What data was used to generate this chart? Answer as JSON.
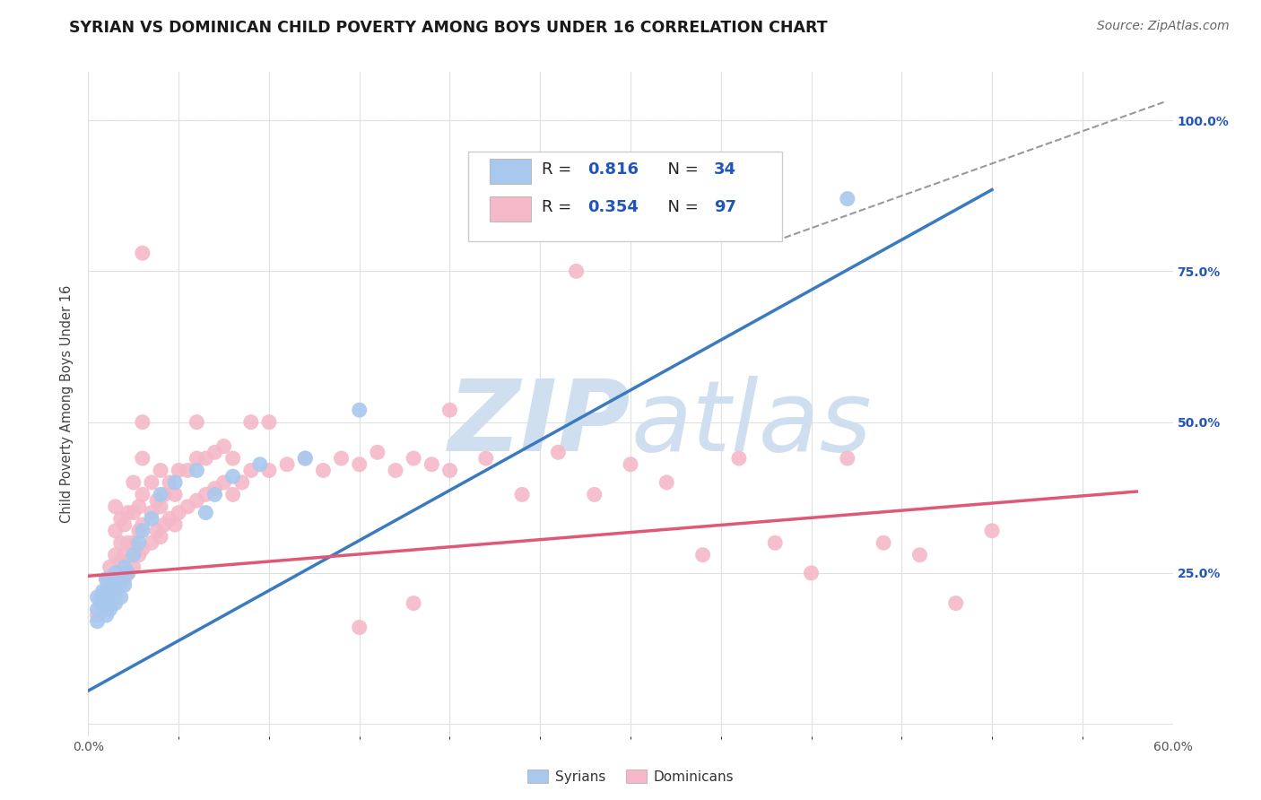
{
  "title": "SYRIAN VS DOMINICAN CHILD POVERTY AMONG BOYS UNDER 16 CORRELATION CHART",
  "source": "Source: ZipAtlas.com",
  "ylabel": "Child Poverty Among Boys Under 16",
  "xlim": [
    0.0,
    0.6
  ],
  "ylim": [
    -0.02,
    1.08
  ],
  "ytick_positions": [
    0.0,
    0.25,
    0.5,
    0.75,
    1.0
  ],
  "ytick_labels": [
    "",
    "25.0%",
    "50.0%",
    "75.0%",
    "100.0%"
  ],
  "syrian_color": "#a8c8ee",
  "dominican_color": "#f5b8c8",
  "syrian_line_color": "#3a7abf",
  "dominican_line_color": "#e05878",
  "legend_color": "#2255bb",
  "background_color": "#ffffff",
  "watermark_color": "#d0dff0",
  "grid_color": "#e0e0e0",
  "syrian_scatter": [
    [
      0.005,
      0.17
    ],
    [
      0.005,
      0.19
    ],
    [
      0.005,
      0.21
    ],
    [
      0.007,
      0.2
    ],
    [
      0.008,
      0.22
    ],
    [
      0.01,
      0.18
    ],
    [
      0.01,
      0.2
    ],
    [
      0.01,
      0.22
    ],
    [
      0.01,
      0.24
    ],
    [
      0.012,
      0.19
    ],
    [
      0.012,
      0.21
    ],
    [
      0.013,
      0.23
    ],
    [
      0.015,
      0.2
    ],
    [
      0.015,
      0.22
    ],
    [
      0.015,
      0.25
    ],
    [
      0.018,
      0.21
    ],
    [
      0.018,
      0.24
    ],
    [
      0.02,
      0.23
    ],
    [
      0.02,
      0.26
    ],
    [
      0.022,
      0.25
    ],
    [
      0.025,
      0.28
    ],
    [
      0.028,
      0.3
    ],
    [
      0.03,
      0.32
    ],
    [
      0.035,
      0.34
    ],
    [
      0.04,
      0.38
    ],
    [
      0.048,
      0.4
    ],
    [
      0.06,
      0.42
    ],
    [
      0.065,
      0.35
    ],
    [
      0.07,
      0.38
    ],
    [
      0.08,
      0.41
    ],
    [
      0.095,
      0.43
    ],
    [
      0.12,
      0.44
    ],
    [
      0.15,
      0.52
    ],
    [
      0.42,
      0.87
    ]
  ],
  "dominican_scatter": [
    [
      0.005,
      0.18
    ],
    [
      0.007,
      0.21
    ],
    [
      0.008,
      0.2
    ],
    [
      0.01,
      0.19
    ],
    [
      0.01,
      0.22
    ],
    [
      0.01,
      0.24
    ],
    [
      0.012,
      0.2
    ],
    [
      0.012,
      0.23
    ],
    [
      0.012,
      0.26
    ],
    [
      0.013,
      0.22
    ],
    [
      0.015,
      0.21
    ],
    [
      0.015,
      0.24
    ],
    [
      0.015,
      0.28
    ],
    [
      0.015,
      0.32
    ],
    [
      0.015,
      0.36
    ],
    [
      0.018,
      0.23
    ],
    [
      0.018,
      0.27
    ],
    [
      0.018,
      0.3
    ],
    [
      0.018,
      0.34
    ],
    [
      0.02,
      0.24
    ],
    [
      0.02,
      0.28
    ],
    [
      0.02,
      0.33
    ],
    [
      0.022,
      0.25
    ],
    [
      0.022,
      0.3
    ],
    [
      0.022,
      0.35
    ],
    [
      0.025,
      0.26
    ],
    [
      0.025,
      0.3
    ],
    [
      0.025,
      0.35
    ],
    [
      0.025,
      0.4
    ],
    [
      0.028,
      0.28
    ],
    [
      0.028,
      0.32
    ],
    [
      0.028,
      0.36
    ],
    [
      0.03,
      0.29
    ],
    [
      0.03,
      0.33
    ],
    [
      0.03,
      0.38
    ],
    [
      0.03,
      0.44
    ],
    [
      0.03,
      0.5
    ],
    [
      0.03,
      0.78
    ],
    [
      0.035,
      0.3
    ],
    [
      0.035,
      0.35
    ],
    [
      0.035,
      0.4
    ],
    [
      0.038,
      0.32
    ],
    [
      0.038,
      0.37
    ],
    [
      0.04,
      0.31
    ],
    [
      0.04,
      0.36
    ],
    [
      0.04,
      0.42
    ],
    [
      0.042,
      0.33
    ],
    [
      0.042,
      0.38
    ],
    [
      0.045,
      0.34
    ],
    [
      0.045,
      0.4
    ],
    [
      0.048,
      0.33
    ],
    [
      0.048,
      0.38
    ],
    [
      0.05,
      0.35
    ],
    [
      0.05,
      0.42
    ],
    [
      0.055,
      0.36
    ],
    [
      0.055,
      0.42
    ],
    [
      0.06,
      0.37
    ],
    [
      0.06,
      0.44
    ],
    [
      0.06,
      0.5
    ],
    [
      0.065,
      0.38
    ],
    [
      0.065,
      0.44
    ],
    [
      0.07,
      0.39
    ],
    [
      0.07,
      0.45
    ],
    [
      0.075,
      0.4
    ],
    [
      0.075,
      0.46
    ],
    [
      0.08,
      0.38
    ],
    [
      0.08,
      0.44
    ],
    [
      0.085,
      0.4
    ],
    [
      0.09,
      0.42
    ],
    [
      0.09,
      0.5
    ],
    [
      0.1,
      0.42
    ],
    [
      0.1,
      0.5
    ],
    [
      0.11,
      0.43
    ],
    [
      0.12,
      0.44
    ],
    [
      0.13,
      0.42
    ],
    [
      0.14,
      0.44
    ],
    [
      0.15,
      0.43
    ],
    [
      0.16,
      0.45
    ],
    [
      0.17,
      0.42
    ],
    [
      0.18,
      0.44
    ],
    [
      0.19,
      0.43
    ],
    [
      0.2,
      0.42
    ],
    [
      0.22,
      0.44
    ],
    [
      0.24,
      0.38
    ],
    [
      0.26,
      0.45
    ],
    [
      0.28,
      0.38
    ],
    [
      0.3,
      0.43
    ],
    [
      0.32,
      0.4
    ],
    [
      0.34,
      0.28
    ],
    [
      0.36,
      0.44
    ],
    [
      0.38,
      0.3
    ],
    [
      0.4,
      0.25
    ],
    [
      0.42,
      0.44
    ],
    [
      0.44,
      0.3
    ],
    [
      0.46,
      0.28
    ],
    [
      0.48,
      0.2
    ],
    [
      0.5,
      0.32
    ],
    [
      0.27,
      0.75
    ],
    [
      0.2,
      0.52
    ],
    [
      0.18,
      0.2
    ],
    [
      0.15,
      0.16
    ]
  ],
  "syrian_line_x": [
    0.0,
    0.5
  ],
  "syrian_line_y": [
    0.055,
    0.885
  ],
  "dominican_line_x": [
    0.0,
    0.58
  ],
  "dominican_line_y": [
    0.245,
    0.385
  ],
  "ref_line_x": [
    0.38,
    0.595
  ],
  "ref_line_y": [
    0.8,
    1.03
  ],
  "title_fontsize": 12.5,
  "axis_fontsize": 10.5,
  "tick_fontsize": 10,
  "legend_fontsize": 13,
  "source_fontsize": 10
}
